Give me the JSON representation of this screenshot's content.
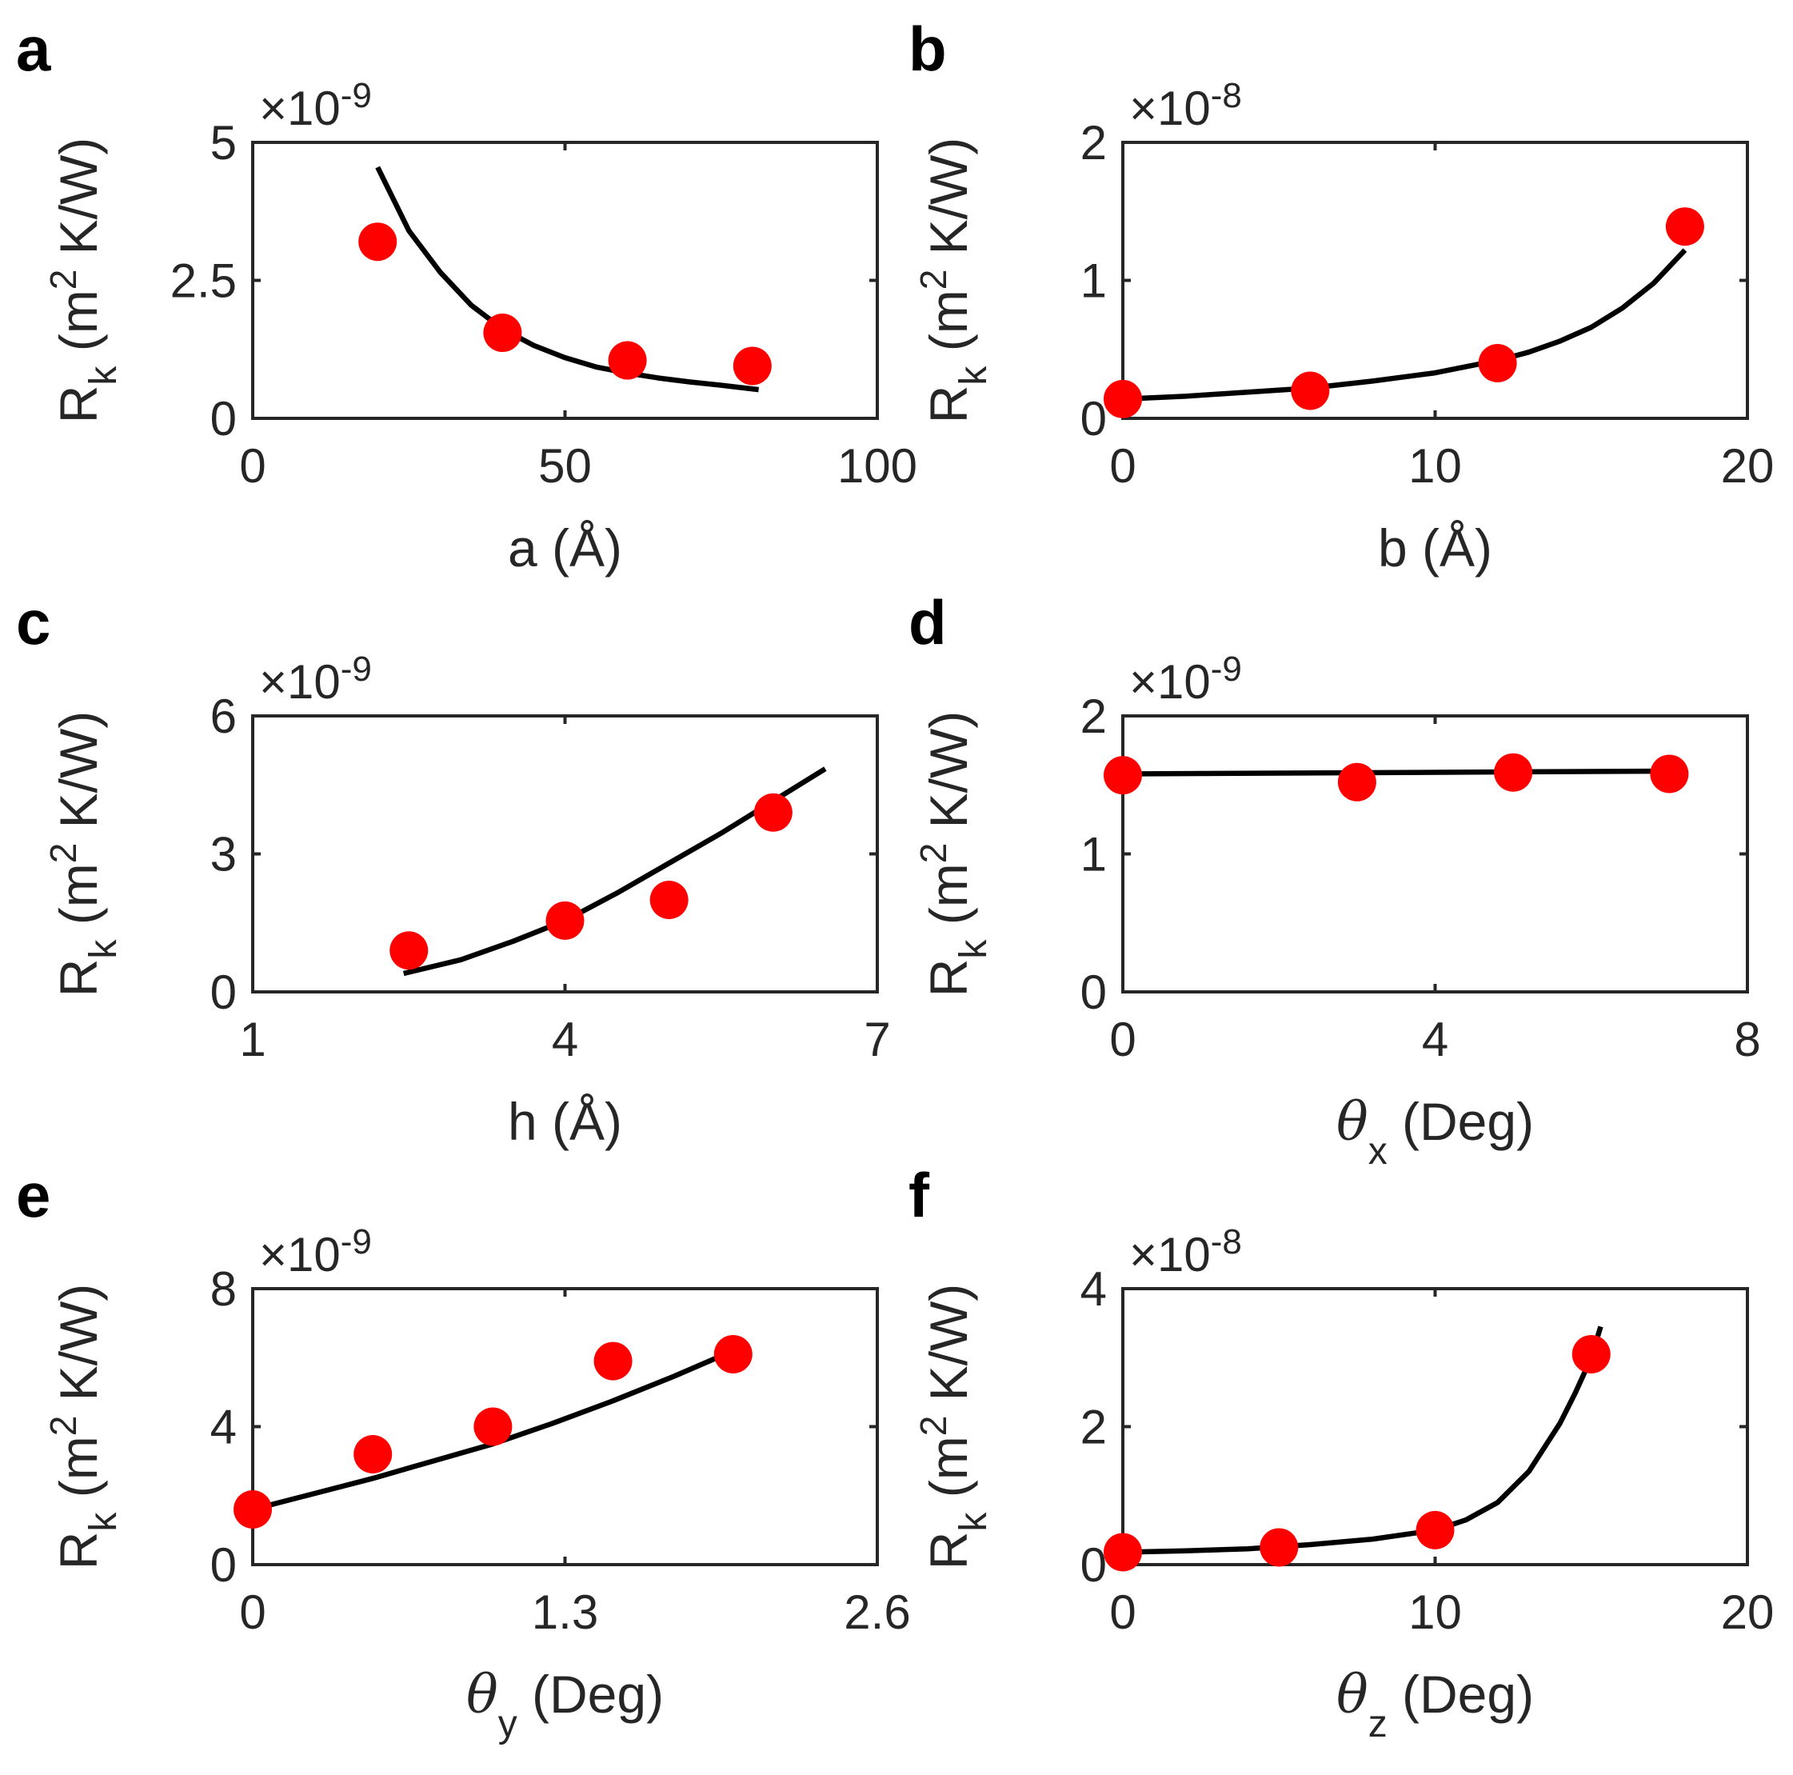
{
  "colors": {
    "fit_line": "#000000",
    "points": "#ff0000",
    "axes": "#262626"
  },
  "chart_data": [
    {
      "panel": "a",
      "type": "scatter",
      "xlabel": "a (Å)",
      "ylabel": "R_k (m^2 K/W)",
      "exponent": "×10-9",
      "xlim": [
        0,
        100
      ],
      "ylim": [
        0,
        5
      ],
      "xticks": [
        0,
        50,
        100
      ],
      "xtick_labels": [
        "0",
        "50",
        "100"
      ],
      "yticks": [
        0,
        2.5,
        5
      ],
      "ytick_labels": [
        "0",
        "2.5",
        "5"
      ],
      "points": {
        "x": [
          20,
          40,
          60,
          80
        ],
        "y": [
          3.2,
          1.55,
          1.05,
          0.95
        ]
      },
      "fit": {
        "x": [
          20,
          25,
          30,
          35,
          40,
          45,
          50,
          55,
          60,
          65,
          70,
          75,
          81
        ],
        "y": [
          4.55,
          3.4,
          2.65,
          2.05,
          1.62,
          1.32,
          1.1,
          0.93,
          0.82,
          0.73,
          0.66,
          0.6,
          0.52
        ]
      }
    },
    {
      "panel": "b",
      "type": "scatter",
      "xlabel": "b (Å)",
      "ylabel": "R_k (m^2 K/W)",
      "exponent": "×10-8",
      "xlim": [
        0,
        20
      ],
      "ylim": [
        0,
        2
      ],
      "xticks": [
        0,
        10,
        20
      ],
      "xtick_labels": [
        "0",
        "10",
        "20"
      ],
      "yticks": [
        0,
        1,
        2
      ],
      "ytick_labels": [
        "0",
        "1",
        "2"
      ],
      "points": {
        "x": [
          0,
          6,
          12,
          18
        ],
        "y": [
          0.14,
          0.2,
          0.4,
          1.39
        ]
      },
      "fit": {
        "x": [
          0,
          2,
          4,
          6,
          8,
          10,
          12,
          13,
          14,
          15,
          16,
          17,
          18
        ],
        "y": [
          0.14,
          0.16,
          0.19,
          0.22,
          0.27,
          0.33,
          0.42,
          0.48,
          0.56,
          0.66,
          0.8,
          0.98,
          1.22
        ]
      }
    },
    {
      "panel": "c",
      "type": "scatter",
      "xlabel": "h (Å)",
      "ylabel": "R_k (m^2 K/W)",
      "exponent": "×10-9",
      "xlim": [
        1,
        7
      ],
      "ylim": [
        0,
        6
      ],
      "xticks": [
        1,
        4,
        7
      ],
      "xtick_labels": [
        "1",
        "4",
        "7"
      ],
      "yticks": [
        0,
        3,
        6
      ],
      "ytick_labels": [
        "0",
        "3",
        "6"
      ],
      "points": {
        "x": [
          2.5,
          4,
          5,
          6
        ],
        "y": [
          0.9,
          1.55,
          2.0,
          3.9
        ]
      },
      "fit": {
        "x": [
          2.45,
          3,
          3.5,
          4,
          4.5,
          5,
          5.5,
          6,
          6.5
        ],
        "y": [
          0.4,
          0.7,
          1.1,
          1.55,
          2.15,
          2.8,
          3.45,
          4.15,
          4.85
        ]
      }
    },
    {
      "panel": "d",
      "type": "scatter",
      "xlabel": "θx (Deg)",
      "ylabel": "R_k (m^2 K/W)",
      "exponent": "×10-9",
      "xlim": [
        0,
        8
      ],
      "ylim": [
        0,
        2
      ],
      "xticks": [
        0,
        4,
        8
      ],
      "xtick_labels": [
        "0",
        "4",
        "8"
      ],
      "yticks": [
        0,
        1,
        2
      ],
      "ytick_labels": [
        "0",
        "1",
        "2"
      ],
      "points": {
        "x": [
          0,
          3,
          5,
          7
        ],
        "y": [
          1.57,
          1.52,
          1.59,
          1.58
        ]
      },
      "fit": {
        "x": [
          0,
          7
        ],
        "y": [
          1.58,
          1.6
        ]
      }
    },
    {
      "panel": "e",
      "type": "scatter",
      "xlabel": "θy (Deg)",
      "ylabel": "R_k (m^2 K/W)",
      "exponent": "×10-9",
      "xlim": [
        0,
        2.6
      ],
      "ylim": [
        0,
        8
      ],
      "xticks": [
        0,
        1.3,
        2.6
      ],
      "xtick_labels": [
        "0",
        "1.3",
        "2.6"
      ],
      "yticks": [
        0,
        4,
        8
      ],
      "ytick_labels": [
        "0",
        "4",
        "8"
      ],
      "points": {
        "x": [
          0,
          0.5,
          1,
          1.5,
          2
        ],
        "y": [
          1.6,
          3.2,
          4.0,
          5.9,
          6.1
        ]
      },
      "fit": {
        "x": [
          0,
          0.25,
          0.5,
          0.75,
          1,
          1.25,
          1.5,
          1.75,
          2
        ],
        "y": [
          1.6,
          2.05,
          2.5,
          3.0,
          3.5,
          4.1,
          4.75,
          5.45,
          6.2
        ]
      }
    },
    {
      "panel": "f",
      "type": "scatter",
      "xlabel": "θz (Deg)",
      "ylabel": "R_k (m^2 K/W)",
      "exponent": "×10-8",
      "xlim": [
        0,
        20
      ],
      "ylim": [
        0,
        4
      ],
      "xticks": [
        0,
        10,
        20
      ],
      "xtick_labels": [
        "0",
        "10",
        "20"
      ],
      "yticks": [
        0,
        2,
        4
      ],
      "ytick_labels": [
        "0",
        "2",
        "4"
      ],
      "points": {
        "x": [
          0,
          5,
          10,
          15
        ],
        "y": [
          0.18,
          0.25,
          0.5,
          3.05
        ]
      },
      "fit": {
        "x": [
          0,
          2,
          4,
          6,
          8,
          10,
          11,
          12,
          13,
          14,
          14.5,
          15,
          15.3
        ],
        "y": [
          0.18,
          0.2,
          0.23,
          0.29,
          0.37,
          0.5,
          0.65,
          0.9,
          1.35,
          2.05,
          2.5,
          3.0,
          3.45
        ]
      }
    }
  ]
}
